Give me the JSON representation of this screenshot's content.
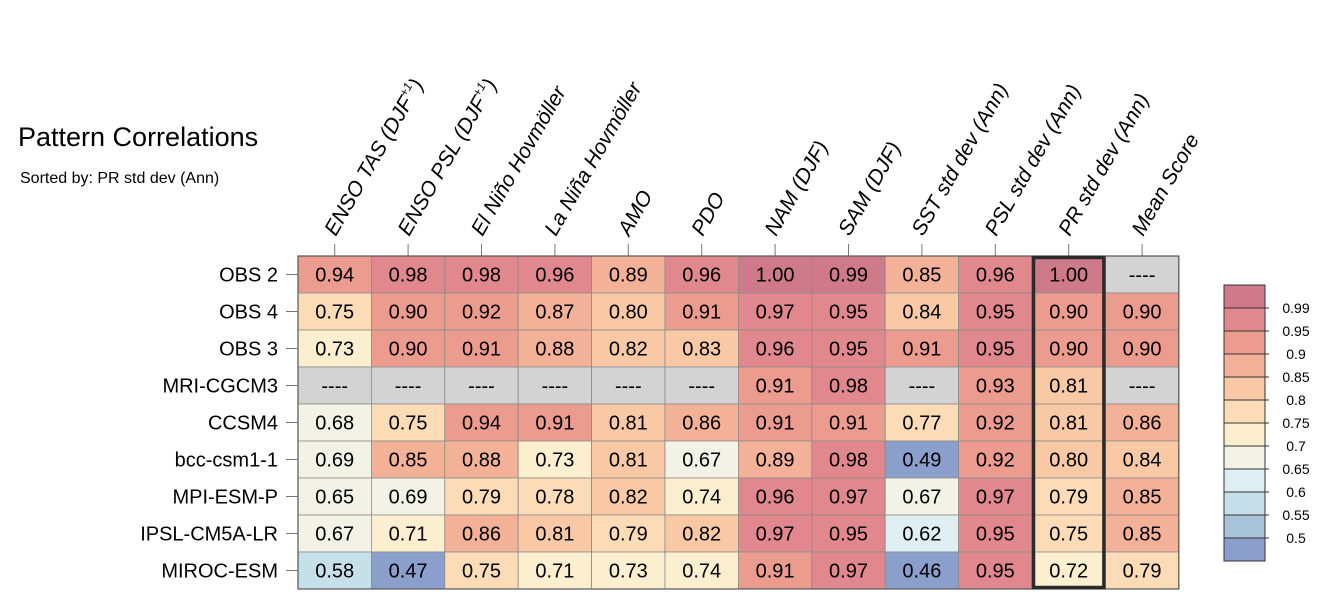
{
  "title": "Pattern Correlations",
  "subtitle": "Sorted by: PR std dev (Ann)",
  "chart_data": {
    "type": "heatmap",
    "columns": [
      {
        "label": "ENSO TAS (DJF",
        "sup": "+1",
        "close": ")"
      },
      {
        "label": "ENSO PSL (DJF",
        "sup": "+1",
        "close": ")"
      },
      {
        "label": "El Niño Hovmöller"
      },
      {
        "label": "La Niña Hovmöller"
      },
      {
        "label": "AMO"
      },
      {
        "label": "PDO"
      },
      {
        "label": "NAM (DJF)"
      },
      {
        "label": "SAM (DJF)"
      },
      {
        "label": "SST std dev (Ann)"
      },
      {
        "label": "PSL std dev (Ann)"
      },
      {
        "label": "PR std dev (Ann)"
      },
      {
        "label": "Mean Score"
      }
    ],
    "rows": [
      "OBS 2",
      "OBS 4",
      "OBS 3",
      "MRI-CGCM3",
      "CCSM4",
      "bcc-csm1-1",
      "MPI-ESM-P",
      "IPSL-CM5A-LR",
      "MIROC-ESM"
    ],
    "values": [
      [
        "0.94",
        "0.98",
        "0.98",
        "0.96",
        "0.89",
        "0.96",
        "1.00",
        "0.99",
        "0.85",
        "0.96",
        "1.00",
        "----"
      ],
      [
        "0.75",
        "0.90",
        "0.92",
        "0.87",
        "0.80",
        "0.91",
        "0.97",
        "0.95",
        "0.84",
        "0.95",
        "0.90",
        "0.90"
      ],
      [
        "0.73",
        "0.90",
        "0.91",
        "0.88",
        "0.82",
        "0.83",
        "0.96",
        "0.95",
        "0.91",
        "0.95",
        "0.90",
        "0.90"
      ],
      [
        "----",
        "----",
        "----",
        "----",
        "----",
        "----",
        "0.91",
        "0.98",
        "----",
        "0.93",
        "0.81",
        "----"
      ],
      [
        "0.68",
        "0.75",
        "0.94",
        "0.91",
        "0.81",
        "0.86",
        "0.91",
        "0.91",
        "0.77",
        "0.92",
        "0.81",
        "0.86"
      ],
      [
        "0.69",
        "0.85",
        "0.88",
        "0.73",
        "0.81",
        "0.67",
        "0.89",
        "0.98",
        "0.49",
        "0.92",
        "0.80",
        "0.84"
      ],
      [
        "0.65",
        "0.69",
        "0.79",
        "0.78",
        "0.82",
        "0.74",
        "0.96",
        "0.97",
        "0.67",
        "0.97",
        "0.79",
        "0.85"
      ],
      [
        "0.67",
        "0.71",
        "0.86",
        "0.81",
        "0.79",
        "0.82",
        "0.97",
        "0.95",
        "0.62",
        "0.95",
        "0.75",
        "0.85"
      ],
      [
        "0.58",
        "0.47",
        "0.75",
        "0.71",
        "0.73",
        "0.74",
        "0.91",
        "0.97",
        "0.46",
        "0.95",
        "0.72",
        "0.79"
      ]
    ],
    "missing_label": "----",
    "missing_color": "#d3d3d3",
    "highlighted_column": "PR std dev (Ann)",
    "colorbar": {
      "labels": [
        "0.99",
        "0.95",
        "0.9",
        "0.85",
        "0.8",
        "0.75",
        "0.7",
        "0.65",
        "0.6",
        "0.55",
        "0.5"
      ],
      "levels": [
        0.99,
        0.95,
        0.9,
        0.85,
        0.8,
        0.75,
        0.7,
        0.65,
        0.6,
        0.55,
        0.5
      ],
      "colors": [
        "#cf7a8b",
        "#e0888d",
        "#ec9c8f",
        "#f3b198",
        "#f8c9a4",
        "#fbdcb7",
        "#fcefcf",
        "#f3f2e7",
        "#deeef2",
        "#c6e0ea",
        "#a8c2da",
        "#8b9fcd"
      ]
    }
  }
}
